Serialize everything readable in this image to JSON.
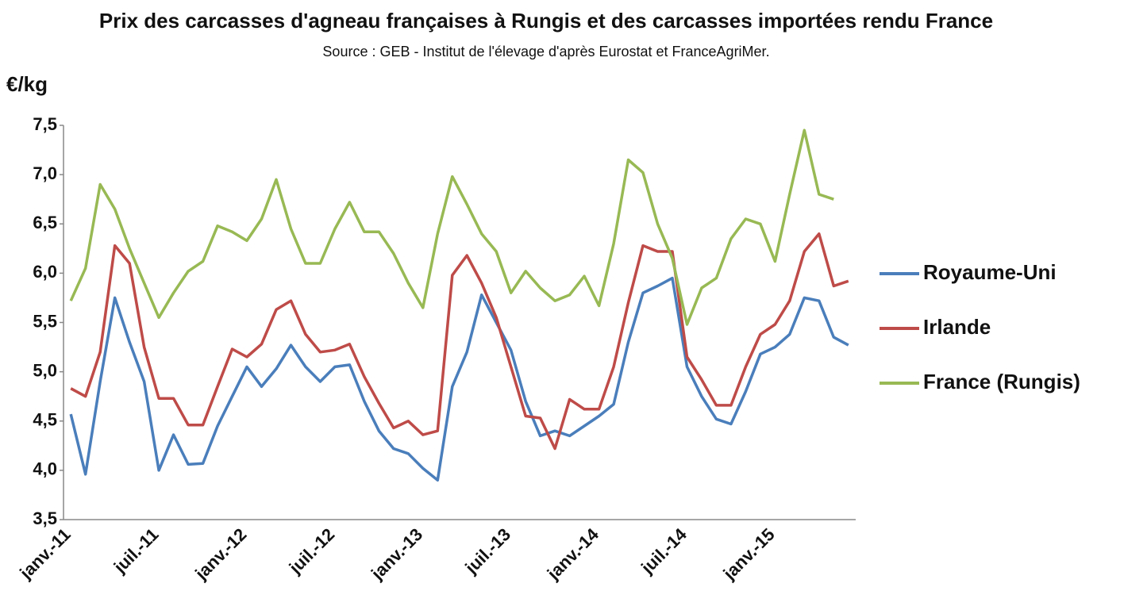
{
  "chart_data": {
    "type": "line",
    "title": "Prix des carcasses d'agneau françaises à Rungis et des carcasses importées rendu France",
    "subtitle": "Source : GEB - Institut de l'élevage d'après Eurostat et FranceAgriMer.",
    "y_label": "€/kg",
    "categories": [
      "janv.-11",
      null,
      null,
      null,
      null,
      null,
      "juil.-11",
      null,
      null,
      null,
      null,
      null,
      "janv.-12",
      null,
      null,
      null,
      null,
      null,
      "juil.-12",
      null,
      null,
      null,
      null,
      null,
      "janv.-13",
      null,
      null,
      null,
      null,
      null,
      "juil.-13",
      null,
      null,
      null,
      null,
      null,
      "janv.-14",
      null,
      null,
      null,
      null,
      null,
      "juil.-14",
      null,
      null,
      null,
      null,
      null,
      "janv.-15",
      null,
      null,
      null,
      null,
      null
    ],
    "series": [
      {
        "name": "Royaume-Uni",
        "color": "#4a7ebb",
        "values": [
          4.57,
          3.96,
          4.9,
          5.75,
          5.3,
          4.9,
          4.0,
          4.36,
          4.06,
          4.07,
          4.45,
          4.75,
          5.05,
          4.85,
          5.03,
          5.27,
          5.05,
          4.9,
          5.05,
          5.07,
          4.7,
          4.4,
          4.22,
          4.17,
          4.02,
          3.9,
          4.85,
          5.2,
          5.78,
          5.5,
          5.22,
          4.7,
          4.35,
          4.4,
          4.35,
          4.45,
          4.55,
          4.67,
          5.3,
          5.8,
          5.87,
          5.95,
          5.05,
          4.75,
          4.52,
          4.47,
          4.8,
          5.18,
          5.25,
          5.38,
          5.75,
          5.72,
          5.35,
          5.27
        ]
      },
      {
        "name": "Irlande",
        "color": "#be4b48",
        "values": [
          4.83,
          4.75,
          5.2,
          6.28,
          6.1,
          5.25,
          4.73,
          4.73,
          4.46,
          4.46,
          4.85,
          5.23,
          5.15,
          5.28,
          5.63,
          5.72,
          5.38,
          5.2,
          5.22,
          5.28,
          4.95,
          4.68,
          4.43,
          4.5,
          4.36,
          4.4,
          5.98,
          6.18,
          5.9,
          5.55,
          5.05,
          4.55,
          4.53,
          4.22,
          4.72,
          4.62,
          4.62,
          5.05,
          5.7,
          6.28,
          6.22,
          6.22,
          5.15,
          4.92,
          4.66,
          4.66,
          5.05,
          5.38,
          5.48,
          5.72,
          6.22,
          6.4,
          5.87,
          5.92
        ]
      },
      {
        "name": "France (Rungis)",
        "color": "#98b954",
        "values": [
          5.72,
          6.05,
          6.9,
          6.65,
          6.25,
          5.9,
          5.55,
          5.8,
          6.02,
          6.12,
          6.48,
          6.42,
          6.33,
          6.55,
          6.95,
          6.45,
          6.1,
          6.1,
          6.45,
          6.72,
          6.42,
          6.42,
          6.2,
          5.9,
          5.65,
          6.4,
          6.98,
          6.7,
          6.4,
          6.22,
          5.8,
          6.02,
          5.85,
          5.72,
          5.78,
          5.97,
          5.67,
          6.3,
          7.15,
          7.02,
          6.5,
          6.15,
          5.48,
          5.85,
          5.95,
          6.35,
          6.55,
          6.5,
          6.12,
          6.8,
          7.45,
          6.8,
          6.75,
          null
        ]
      }
    ],
    "ylim": [
      3.5,
      7.5
    ],
    "yticks": [
      {
        "value": 3.5,
        "label": "3,5"
      },
      {
        "value": 4,
        "label": "4,0"
      },
      {
        "value": 4.5,
        "label": "4,5"
      },
      {
        "value": 5,
        "label": "5,0"
      },
      {
        "value": 5.5,
        "label": "5,5"
      },
      {
        "value": 6,
        "label": "6,0"
      },
      {
        "value": 6.5,
        "label": "6,5"
      },
      {
        "value": 7,
        "label": "7,0"
      },
      {
        "value": 7.5,
        "label": "7,5"
      }
    ],
    "legend": "right"
  }
}
